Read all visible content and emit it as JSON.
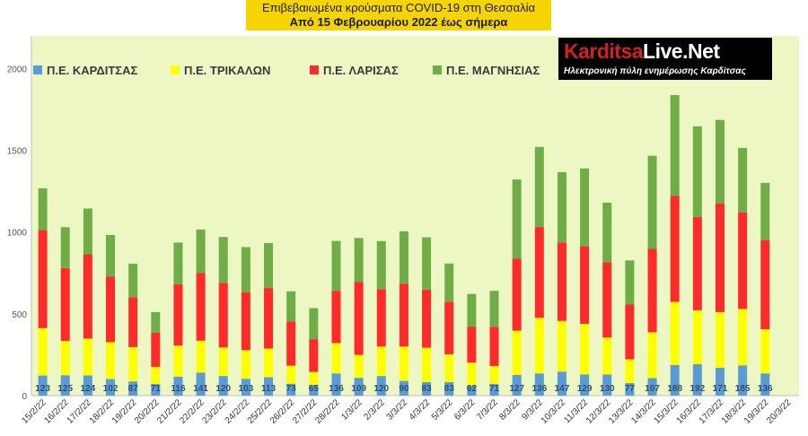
{
  "title": {
    "line1": "Επιβεβαιωμένα κρούσματα COVID-19 στη Θεσσαλία",
    "line2": "Από 15 Φεβρουαρίου 2022 έως σήμερα"
  },
  "logo": {
    "name_prefix": "Karditsa",
    "name_suffix": "Live.Net",
    "tagline": "Ηλεκτρονική πύλη ενημέρωσης Καρδίτσας"
  },
  "colors": {
    "plot_background": "#ecf7c4",
    "title_background": "#f5d400",
    "karditsa": "#5b9bd5",
    "trikala": "#ffff00",
    "larisa": "#ff2a2a",
    "magnisia": "#70ad47"
  },
  "chart_data": {
    "type": "bar",
    "stacked": true,
    "legend_position": "top-left",
    "grid": false,
    "ylim": [
      0,
      2200
    ],
    "yticks": [
      0,
      500,
      1000,
      1500,
      2000
    ],
    "categories": [
      "15/2/22",
      "16/2/22",
      "17/2/22",
      "18/2/22",
      "19/2/22",
      "20/2/22",
      "21/2/22",
      "22/2/22",
      "23/2/22",
      "24/2/22",
      "25/2/22",
      "26/2/22",
      "27/2/22",
      "28/2/22",
      "1/3/22",
      "2/3/22",
      "3/3/22",
      "4/3/22",
      "5/3/22",
      "6/3/22",
      "7/3/22",
      "8/3/22",
      "9/3/22",
      "10/3/22",
      "11/3/22",
      "12/3/22",
      "13/3/22",
      "14/3/22",
      "15/3/22",
      "16/3/22",
      "17/3/22",
      "18/3/22",
      "19/3/22",
      "20/3/22"
    ],
    "series": [
      {
        "name": "Π.Ε. ΚΑΡΔΙΤΣΑΣ",
        "color": "#5b9bd5",
        "values": [
          123,
          125,
          124,
          102,
          87,
          71,
          116,
          141,
          120,
          103,
          113,
          73,
          65,
          136,
          109,
          120,
          90,
          83,
          83,
          62,
          71,
          127,
          136,
          147,
          129,
          130,
          77,
          107,
          188,
          192,
          171,
          185,
          136,
          null
        ]
      },
      {
        "name": "Π.Ε. ΤΡΙΚΑΛΩΝ",
        "color": "#ffff00",
        "values": [
          290,
          210,
          225,
          225,
          210,
          105,
          190,
          195,
          175,
          175,
          175,
          110,
          80,
          185,
          140,
          180,
          210,
          210,
          170,
          140,
          110,
          270,
          340,
          310,
          310,
          225,
          145,
          280,
          385,
          330,
          340,
          345,
          270,
          null
        ]
      },
      {
        "name": "Π.Ε. ΛΑΡΙΣΑΣ",
        "color": "#ff2a2a",
        "values": [
          600,
          445,
          515,
          400,
          305,
          210,
          375,
          415,
          395,
          355,
          370,
          270,
          200,
          320,
          445,
          350,
          385,
          355,
          320,
          220,
          240,
          440,
          555,
          480,
          475,
          460,
          335,
          510,
          650,
          570,
          665,
          590,
          545,
          null
        ]
      },
      {
        "name": "Π.Ε. ΜΑΓΝΗΣΙΑΣ",
        "color": "#70ad47",
        "values": [
          255,
          250,
          280,
          255,
          205,
          125,
          255,
          265,
          280,
          275,
          275,
          185,
          190,
          305,
          270,
          295,
          320,
          320,
          235,
          200,
          220,
          485,
          490,
          430,
          475,
          365,
          270,
          570,
          615,
          555,
          510,
          395,
          350,
          null
        ]
      }
    ],
    "data_labels_series": "Π.Ε. ΚΑΡΔΙΤΣΑΣ"
  }
}
